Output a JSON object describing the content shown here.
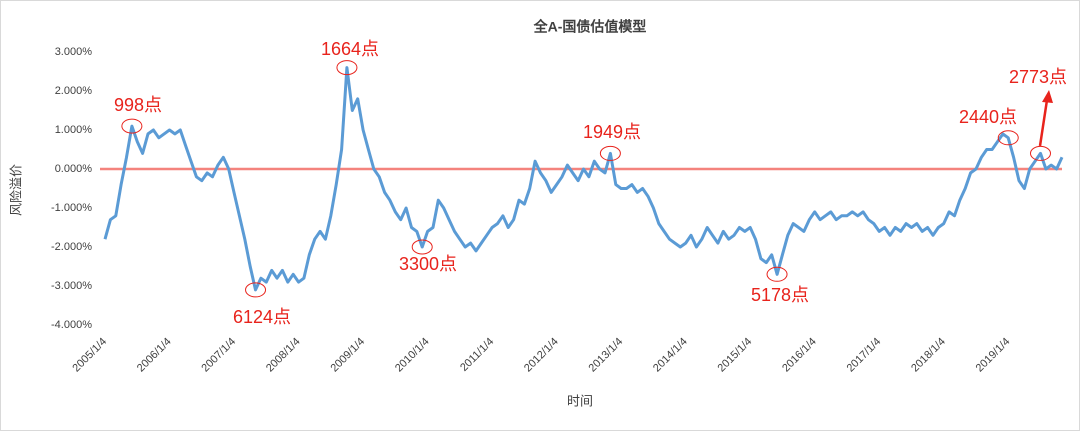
{
  "chart_data": {
    "type": "line",
    "title": "全A-国债估值模型",
    "x_label": "时间",
    "y_label": "风险溢价",
    "categories": [
      "2005/1/4",
      null,
      null,
      null,
      null,
      null,
      null,
      null,
      null,
      null,
      null,
      null,
      "2006/1/4",
      null,
      null,
      null,
      null,
      null,
      null,
      null,
      null,
      null,
      null,
      null,
      "2007/1/4",
      null,
      null,
      null,
      null,
      null,
      null,
      null,
      null,
      null,
      null,
      null,
      "2008/1/4",
      null,
      null,
      null,
      null,
      null,
      null,
      null,
      null,
      null,
      null,
      null,
      "2009/1/4",
      null,
      null,
      null,
      null,
      null,
      null,
      null,
      null,
      null,
      null,
      null,
      "2010/1/4",
      null,
      null,
      null,
      null,
      null,
      null,
      null,
      null,
      null,
      null,
      null,
      "2011/1/4",
      null,
      null,
      null,
      null,
      null,
      null,
      null,
      null,
      null,
      null,
      null,
      "2012/1/4",
      null,
      null,
      null,
      null,
      null,
      null,
      null,
      null,
      null,
      null,
      null,
      "2013/1/4",
      null,
      null,
      null,
      null,
      null,
      null,
      null,
      null,
      null,
      null,
      null,
      "2014/1/4",
      null,
      null,
      null,
      null,
      null,
      null,
      null,
      null,
      null,
      null,
      null,
      "2015/1/4",
      null,
      null,
      null,
      null,
      null,
      null,
      null,
      null,
      null,
      null,
      null,
      "2016/1/4",
      null,
      null,
      null,
      null,
      null,
      null,
      null,
      null,
      null,
      null,
      null,
      "2017/1/4",
      null,
      null,
      null,
      null,
      null,
      null,
      null,
      null,
      null,
      null,
      null,
      "2018/1/4",
      null,
      null,
      null,
      null,
      null,
      null,
      null,
      null,
      null,
      null,
      null,
      "2019/1/4",
      null,
      null,
      null,
      null,
      null,
      null,
      null,
      null,
      null,
      null
    ],
    "series": [
      {
        "color": "#5b9bd5",
        "values": [
          -1.8,
          -1.3,
          -1.2,
          -0.4,
          0.3,
          1.1,
          0.7,
          0.4,
          0.9,
          1.0,
          0.8,
          0.9,
          1.0,
          0.9,
          1.0,
          0.6,
          0.2,
          -0.2,
          -0.3,
          -0.1,
          -0.2,
          0.1,
          0.3,
          0.0,
          -0.6,
          -1.2,
          -1.8,
          -2.5,
          -3.1,
          -2.8,
          -2.9,
          -2.6,
          -2.8,
          -2.6,
          -2.9,
          -2.7,
          -2.9,
          -2.8,
          -2.2,
          -1.8,
          -1.6,
          -1.8,
          -1.2,
          -0.4,
          0.5,
          2.6,
          1.5,
          1.8,
          1.0,
          0.5,
          0.0,
          -0.2,
          -0.6,
          -0.8,
          -1.1,
          -1.3,
          -1.0,
          -1.5,
          -1.6,
          -2.0,
          -1.6,
          -1.5,
          -0.8,
          -1.0,
          -1.3,
          -1.6,
          -1.8,
          -2.0,
          -1.9,
          -2.1,
          -1.9,
          -1.7,
          -1.5,
          -1.4,
          -1.2,
          -1.5,
          -1.3,
          -0.8,
          -0.9,
          -0.5,
          0.2,
          -0.1,
          -0.3,
          -0.6,
          -0.4,
          -0.2,
          0.1,
          -0.1,
          -0.3,
          0.0,
          -0.2,
          0.2,
          0.0,
          -0.1,
          0.4,
          -0.4,
          -0.5,
          -0.5,
          -0.4,
          -0.6,
          -0.5,
          -0.7,
          -1.0,
          -1.4,
          -1.6,
          -1.8,
          -1.9,
          -2.0,
          -1.9,
          -1.7,
          -2.0,
          -1.8,
          -1.5,
          -1.7,
          -1.9,
          -1.6,
          -1.8,
          -1.7,
          -1.5,
          -1.6,
          -1.5,
          -1.8,
          -2.3,
          -2.4,
          -2.2,
          -2.7,
          -2.2,
          -1.7,
          -1.4,
          -1.5,
          -1.6,
          -1.3,
          -1.1,
          -1.3,
          -1.2,
          -1.1,
          -1.3,
          -1.2,
          -1.2,
          -1.1,
          -1.2,
          -1.1,
          -1.3,
          -1.4,
          -1.6,
          -1.5,
          -1.7,
          -1.5,
          -1.6,
          -1.4,
          -1.5,
          -1.4,
          -1.6,
          -1.5,
          -1.7,
          -1.5,
          -1.4,
          -1.1,
          -1.2,
          -0.8,
          -0.5,
          -0.1,
          0.0,
          0.3,
          0.5,
          0.5,
          0.7,
          0.9,
          0.8,
          0.3,
          -0.3,
          -0.5,
          0.0,
          0.2,
          0.4,
          0.0,
          0.1,
          0.0,
          0.3
        ]
      }
    ],
    "ylim": [
      -4,
      3
    ],
    "yticks": [
      {
        "value": -4,
        "label": "-4.000%"
      },
      {
        "value": -3,
        "label": "-3.000%"
      },
      {
        "value": -2,
        "label": "-2.000%"
      },
      {
        "value": -1,
        "label": "-1.000%"
      },
      {
        "value": 0,
        "label": "0.000%"
      },
      {
        "value": 1,
        "label": "1.000%"
      },
      {
        "value": 2,
        "label": "2.000%"
      },
      {
        "value": 3,
        "label": "3.000%"
      }
    ],
    "reference_line": {
      "value": 0,
      "color": "#f4837d"
    },
    "annotations": [
      "998点",
      "1664点",
      "6124点",
      "3300点",
      "1949点",
      "5178点",
      "2440点",
      "2773点"
    ],
    "annotation_color": "#e8231c",
    "grid": false
  }
}
